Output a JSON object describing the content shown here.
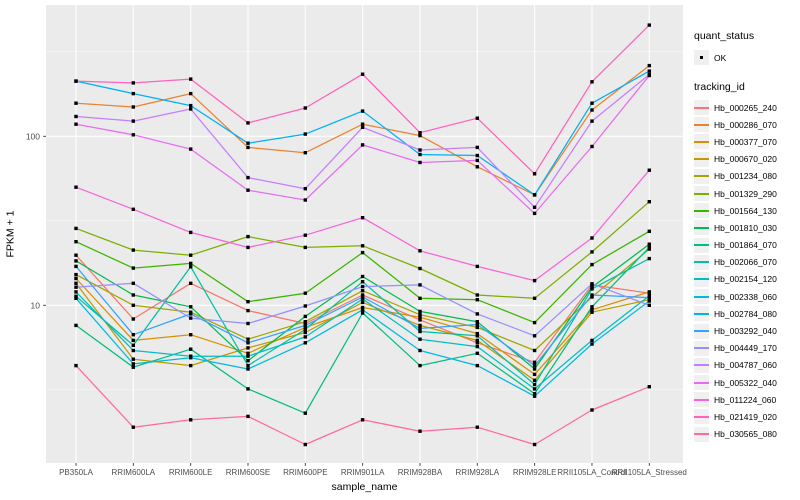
{
  "chart_data": {
    "type": "line",
    "xlabel": "sample_name",
    "ylabel": "FPKM + 1",
    "y_scale": "log10",
    "y_ticks": [
      10,
      100
    ],
    "y_minor_ticks": [
      3.162,
      31.62,
      316.2
    ],
    "ylim": [
      1.17,
      600
    ],
    "grid": "on",
    "legend_position": "right",
    "panel_bg": "#EBEBEB",
    "grid_color": "#FFFFFF",
    "point_color": "#000000",
    "text_color": "#4D4D4D",
    "legend": {
      "quant_status_title": "quant_status",
      "ok_label": "OK",
      "tracking_title": "tracking_id"
    },
    "categories": [
      "PB350LA",
      "RRIM600LA",
      "RRIM600LE",
      "RRIM600SE",
      "RRIM600PE",
      "RRIM901LA",
      "RRIM928BA",
      "RRIM928LA",
      "RRIM928LE",
      "RRII105LA_Control",
      "RRII105LA_Stressed"
    ],
    "series": [
      {
        "name": "Hb_000265_240",
        "color": "#F8766D",
        "values": [
          19.8,
          8.3,
          13.5,
          9.3,
          7.8,
          11.5,
          8.2,
          6.0,
          4.6,
          13.2,
          11.8
        ]
      },
      {
        "name": "Hb_000286_070",
        "color": "#EA8331",
        "values": [
          157,
          149,
          179,
          86,
          80,
          118,
          101,
          66,
          45,
          143,
          262
        ]
      },
      {
        "name": "Hb_000377_070",
        "color": "#D89000",
        "values": [
          14.4,
          6.2,
          6.7,
          5.2,
          7.4,
          9.7,
          8.5,
          6.8,
          3.9,
          9.4,
          12.0
        ]
      },
      {
        "name": "Hb_000670_020",
        "color": "#C09B00",
        "values": [
          13.5,
          4.8,
          4.4,
          5.6,
          6.9,
          10.4,
          7.6,
          6.2,
          3.6,
          9.1,
          10.8
        ]
      },
      {
        "name": "Hb_001234_080",
        "color": "#A3A500",
        "values": [
          15.2,
          10.0,
          9.1,
          6.3,
          8.0,
          12.2,
          8.8,
          7.4,
          5.4,
          11.2,
          21.5
        ]
      },
      {
        "name": "Hb_001329_290",
        "color": "#7CAE00",
        "values": [
          28.5,
          21.2,
          19.8,
          25.5,
          22.0,
          22.5,
          16.5,
          11.5,
          11.0,
          20.7,
          41
        ]
      },
      {
        "name": "Hb_001564_130",
        "color": "#39B600",
        "values": [
          23.8,
          16.6,
          17.7,
          10.5,
          11.8,
          20.5,
          11.0,
          10.8,
          7.9,
          17.4,
          27.4
        ]
      },
      {
        "name": "Hb_001810_030",
        "color": "#00BB4E",
        "values": [
          18.3,
          11.5,
          9.8,
          4.7,
          8.6,
          14.8,
          9.2,
          8.0,
          4.2,
          12.8,
          23.0
        ]
      },
      {
        "name": "Hb_001864_070",
        "color": "#00BF7D",
        "values": [
          7.6,
          4.3,
          5.5,
          3.2,
          2.3,
          9.0,
          4.4,
          5.2,
          3.0,
          9.8,
          22.0
        ]
      },
      {
        "name": "Hb_002066_070",
        "color": "#00C1A3",
        "values": [
          11.3,
          5.8,
          16.9,
          4.4,
          7.2,
          13.8,
          7.0,
          6.6,
          3.4,
          12.5,
          18.9
        ]
      },
      {
        "name": "Hb_002154_120",
        "color": "#00BFC4",
        "values": [
          12.0,
          5.4,
          5.0,
          5.0,
          6.5,
          10.9,
          6.3,
          5.7,
          3.2,
          6.2,
          11.4
        ]
      },
      {
        "name": "Hb_002338_060",
        "color": "#00BAE0",
        "values": [
          11.0,
          4.5,
          4.9,
          4.2,
          6.0,
          9.4,
          5.4,
          4.4,
          2.9,
          5.9,
          10.6
        ]
      },
      {
        "name": "Hb_002784_080",
        "color": "#00B0F6",
        "values": [
          212,
          179,
          152,
          91,
          103,
          141,
          78,
          77,
          45,
          157,
          243
        ]
      },
      {
        "name": "Hb_003292_040",
        "color": "#35A2FF",
        "values": [
          17.0,
          6.7,
          8.9,
          6.0,
          7.6,
          11.2,
          7.3,
          7.7,
          4.4,
          11.5,
          11.1
        ]
      },
      {
        "name": "Hb_004449_170",
        "color": "#9590FF",
        "values": [
          12.8,
          13.5,
          8.4,
          7.8,
          9.9,
          12.9,
          13.2,
          8.9,
          6.6,
          13.4,
          10.0
        ]
      },
      {
        "name": "Hb_004787_060",
        "color": "#C77CFF",
        "values": [
          131,
          123,
          145,
          57,
          49,
          113,
          83,
          86,
          38,
          123,
          232
        ]
      },
      {
        "name": "Hb_005322_040",
        "color": "#E76BF3",
        "values": [
          118,
          102,
          84,
          48,
          42,
          89,
          70,
          72,
          35,
          87,
          229
        ]
      },
      {
        "name": "Hb_011224_060",
        "color": "#FA62DB",
        "values": [
          50,
          37,
          27,
          22,
          26,
          33,
          21,
          17,
          14,
          25,
          63
        ]
      },
      {
        "name": "Hb_021419_020",
        "color": "#FF62BC",
        "values": [
          212,
          207,
          218,
          120,
          147,
          233,
          105,
          128,
          60,
          210,
          455
        ]
      },
      {
        "name": "Hb_030565_080",
        "color": "#FF6A98",
        "values": [
          4.4,
          1.9,
          2.1,
          2.2,
          1.5,
          2.1,
          1.8,
          1.9,
          1.5,
          2.4,
          3.3
        ]
      }
    ]
  }
}
